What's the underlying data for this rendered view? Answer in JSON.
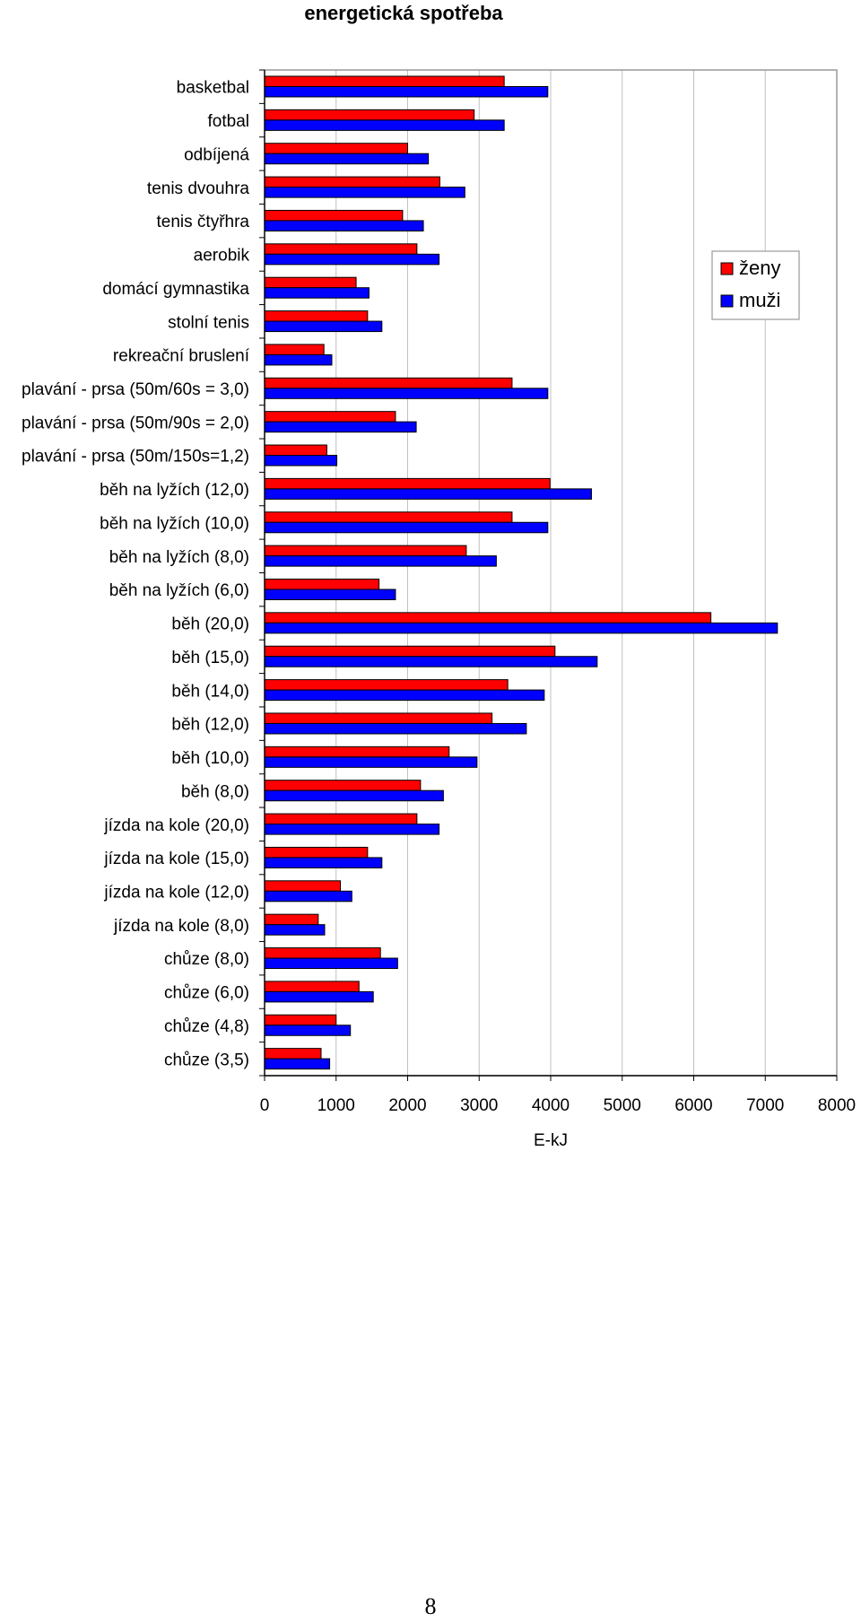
{
  "page_number": "8",
  "chart_data": {
    "type": "bar",
    "orientation": "horizontal",
    "title": "energetická spotřeba",
    "xlabel": "E-kJ",
    "ylabel": "",
    "xlim": [
      0,
      8000
    ],
    "xticks": [
      "0",
      "1000",
      "2000",
      "3000",
      "4000",
      "5000",
      "6000",
      "7000",
      "8000"
    ],
    "grid": "vertical",
    "legend": "right",
    "categories": [
      "basketbal",
      "fotbal",
      "odbíjená",
      "tenis dvouhra",
      "tenis čtyřhra",
      "aerobik",
      "domácí gymnastika",
      "stolní tenis",
      "rekreační bruslení",
      "plavání - prsa (50m/60s = 3,0)",
      "plavání - prsa (50m/90s = 2,0)",
      "plavání - prsa (50m/150s=1,2)",
      "běh na lyžích (12,0)",
      "běh na lyžích (10,0)",
      "běh na lyžích (8,0)",
      "běh na lyžích (6,0)",
      "běh (20,0)",
      "běh (15,0)",
      "běh (14,0)",
      "běh (12,0)",
      "běh (10,0)",
      "běh (8,0)",
      "jízda na kole (20,0)",
      "jízda na kole (15,0)",
      "jízda na kole (12,0)",
      "jízda na kole (8,0)",
      "chůze (8,0)",
      "chůze (6,0)",
      "chůze (4,8)",
      "chůze (3,5)"
    ],
    "series": [
      {
        "name": "ženy",
        "color": "#ff0000",
        "values": [
          3350,
          2930,
          2000,
          2450,
          1930,
          2130,
          1280,
          1440,
          830,
          3460,
          1830,
          870,
          3990,
          3460,
          2820,
          1600,
          6240,
          4060,
          3400,
          3180,
          2580,
          2180,
          2130,
          1440,
          1060,
          750,
          1620,
          1320,
          1000,
          790
        ]
      },
      {
        "name": "muži",
        "color": "#0000ff",
        "values": [
          3960,
          3350,
          2290,
          2800,
          2220,
          2440,
          1460,
          1640,
          940,
          3960,
          2120,
          1010,
          4570,
          3960,
          3240,
          1830,
          7170,
          4650,
          3910,
          3660,
          2970,
          2500,
          2440,
          1640,
          1220,
          840,
          1860,
          1520,
          1200,
          910
        ]
      }
    ]
  }
}
